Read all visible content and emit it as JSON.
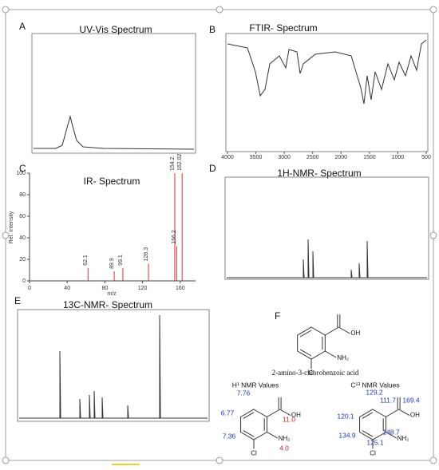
{
  "panels": {
    "a": {
      "label": "A",
      "title": "UV-Vis Spectrum"
    },
    "b": {
      "label": "B",
      "title": "FTIR- Spectrum",
      "xticks": [
        4000,
        3500,
        3000,
        2500,
        2000,
        1500,
        1000,
        500
      ]
    },
    "c": {
      "label": "C",
      "title": "IR- Spectrum",
      "ylabel": "Rel. Intensity",
      "xlabel": "m/z",
      "yticks": [
        0,
        20,
        40,
        60,
        80,
        100
      ],
      "xticks": [
        0,
        40,
        80,
        120,
        160
      ],
      "peaks": [
        {
          "mz": 62.1,
          "intensity": 12
        },
        {
          "mz": 89.9,
          "intensity": 9
        },
        {
          "mz": 99.1,
          "intensity": 12
        },
        {
          "mz": 126.3,
          "intensity": 16
        },
        {
          "mz": 154.2,
          "intensity": 100
        },
        {
          "mz": 156.2,
          "intensity": 32
        },
        {
          "mz": 162.02,
          "intensity": 100
        }
      ]
    },
    "d": {
      "label": "D",
      "title": "1H-NMR- Spectrum"
    },
    "e": {
      "label": "E",
      "title": "13C-NMR- Spectrum"
    },
    "f": {
      "label": "F",
      "compound": "2-amino-3-chlorobenzoic acid",
      "oh": "OH",
      "nh2": "NH₂",
      "cl": "Cl",
      "h1": {
        "title": "H¹ NMR Values",
        "values": [
          "7.76",
          "6.77",
          "7.36",
          "11.0",
          "4.0"
        ]
      },
      "c13": {
        "title": "C¹³ NMR Values",
        "values": [
          "129.2",
          "111.7",
          "169.4",
          "120.1",
          "148.7",
          "134.9",
          "125.1"
        ]
      }
    }
  }
}
